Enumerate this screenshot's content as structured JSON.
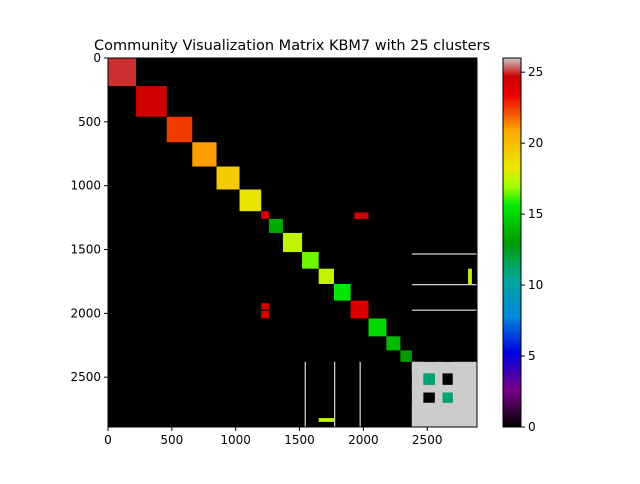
{
  "chart_data": {
    "type": "heatmap",
    "title": "Community Visualization Matrix KBM7 with 25 clusters",
    "matrix_size": 2890,
    "x_ticks": [
      0,
      500,
      1000,
      1500,
      2000,
      2500
    ],
    "y_ticks": [
      0,
      500,
      1000,
      1500,
      2000,
      2500
    ],
    "colorbar": {
      "min": 0,
      "max": 26,
      "ticks": [
        0,
        5,
        10,
        15,
        20,
        25
      ],
      "colormap": "nipy_spectral",
      "stops": [
        {
          "v": 0.0,
          "c": "#000000"
        },
        {
          "v": 0.1,
          "c": "#7a0088"
        },
        {
          "v": 0.2,
          "c": "#0000dd"
        },
        {
          "v": 0.3,
          "c": "#0088dd"
        },
        {
          "v": 0.4,
          "c": "#00a89a"
        },
        {
          "v": 0.5,
          "c": "#009c00"
        },
        {
          "v": 0.6,
          "c": "#00ea00"
        },
        {
          "v": 0.65,
          "c": "#9cff00"
        },
        {
          "v": 0.7,
          "c": "#e8ea00"
        },
        {
          "v": 0.8,
          "c": "#ffaa00"
        },
        {
          "v": 0.9,
          "c": "#e80000"
        },
        {
          "v": 0.95,
          "c": "#cc0000"
        },
        {
          "v": 1.0,
          "c": "#cccccc"
        }
      ]
    },
    "diagonal_blocks": [
      {
        "start": 0,
        "end": 220,
        "value": 25
      },
      {
        "start": 220,
        "end": 460,
        "value": 24.5
      },
      {
        "start": 460,
        "end": 660,
        "value": 22.5
      },
      {
        "start": 660,
        "end": 850,
        "value": 21
      },
      {
        "start": 850,
        "end": 1030,
        "value": 19.5
      },
      {
        "start": 1030,
        "end": 1200,
        "value": 18.5
      },
      {
        "start": 1200,
        "end": 1260,
        "value": 24
      },
      {
        "start": 1260,
        "end": 1370,
        "value": 13.5
      },
      {
        "start": 1370,
        "end": 1520,
        "value": 17.5
      },
      {
        "start": 1520,
        "end": 1650,
        "value": 16.5
      },
      {
        "start": 1650,
        "end": 1770,
        "value": 17.5
      },
      {
        "start": 1770,
        "end": 1900,
        "value": 15.5
      },
      {
        "start": 1900,
        "end": 2040,
        "value": 24
      },
      {
        "start": 2040,
        "end": 2180,
        "value": 15
      },
      {
        "start": 2180,
        "end": 2290,
        "value": 14
      },
      {
        "start": 2290,
        "end": 2380,
        "value": 13
      },
      {
        "start": 2380,
        "end": 2470,
        "value": 26
      },
      {
        "start": 2470,
        "end": 2560,
        "value": 11
      },
      {
        "start": 2560,
        "end": 2620,
        "value": 26
      },
      {
        "start": 2620,
        "end": 2700,
        "value": 11
      },
      {
        "start": 2700,
        "end": 2890,
        "value": 26
      }
    ],
    "off_diagonal_blocks": [
      {
        "x0": 1930,
        "x1": 1990,
        "y0": 1210,
        "y1": 1260,
        "value": 24
      },
      {
        "x0": 1990,
        "x1": 2040,
        "y0": 1210,
        "y1": 1260,
        "value": 24
      },
      {
        "x0": 1200,
        "x1": 1260,
        "y0": 1920,
        "y1": 1970,
        "value": 24
      },
      {
        "x0": 1200,
        "x1": 1260,
        "y0": 1980,
        "y1": 2040,
        "value": 24
      },
      {
        "x0": 1520,
        "x1": 1650,
        "y0": 1520,
        "y1": 1540,
        "value": 16.5
      },
      {
        "x0": 2820,
        "x1": 2850,
        "y0": 1650,
        "y1": 1770,
        "value": 17.5
      },
      {
        "x0": 1650,
        "x1": 1770,
        "y0": 2820,
        "y1": 2850,
        "value": 17.5
      },
      {
        "x0": 2850,
        "x1": 2890,
        "y0": 2820,
        "y1": 2850,
        "value": 17.5
      },
      {
        "x0": 2380,
        "x1": 2470,
        "y0": 2380,
        "y1": 2890,
        "value": 26
      },
      {
        "x0": 2560,
        "x1": 2620,
        "y0": 2380,
        "y1": 2890,
        "value": 26
      },
      {
        "x0": 2700,
        "x1": 2890,
        "y0": 2380,
        "y1": 2890,
        "value": 26
      },
      {
        "x0": 2380,
        "x1": 2890,
        "y0": 2380,
        "y1": 2470,
        "value": 26
      },
      {
        "x0": 2380,
        "x1": 2890,
        "y0": 2560,
        "y1": 2620,
        "value": 26
      },
      {
        "x0": 2380,
        "x1": 2890,
        "y0": 2700,
        "y1": 2890,
        "value": 26
      },
      {
        "x0": 2380,
        "x1": 2890,
        "y0": 1530,
        "y1": 1540,
        "value": 26
      },
      {
        "x0": 2380,
        "x1": 2890,
        "y0": 1770,
        "y1": 1780,
        "value": 26
      },
      {
        "x0": 2380,
        "x1": 2890,
        "y0": 1970,
        "y1": 1980,
        "value": 26
      },
      {
        "x0": 1540,
        "x1": 1550,
        "y0": 2380,
        "y1": 2890,
        "value": 26
      },
      {
        "x0": 1770,
        "x1": 1780,
        "y0": 2380,
        "y1": 2890,
        "value": 26
      },
      {
        "x0": 1970,
        "x1": 1980,
        "y0": 2380,
        "y1": 2890,
        "value": 26
      }
    ]
  }
}
